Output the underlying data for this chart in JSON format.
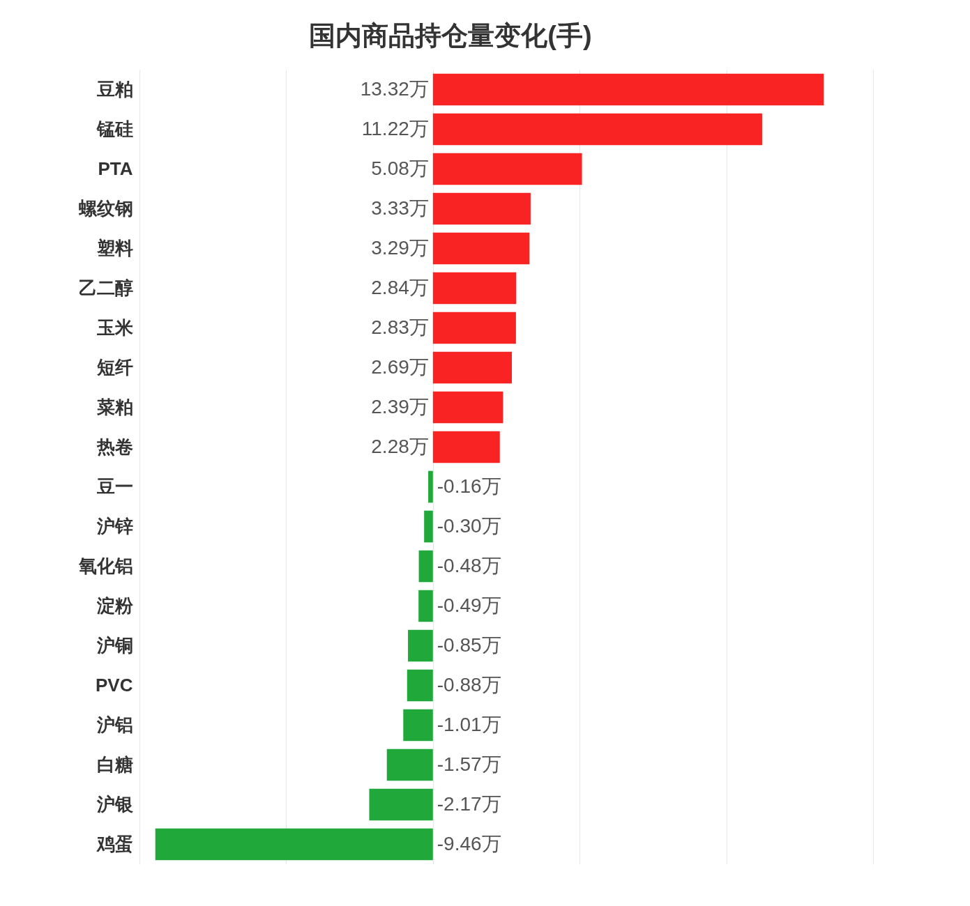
{
  "chart_data": {
    "type": "bar",
    "orientation": "horizontal",
    "title": "国内商品持仓量变化(手)",
    "categories": [
      "豆粕",
      "锰硅",
      "PTA",
      "螺纹钢",
      "塑料",
      "乙二醇",
      "玉米",
      "短纤",
      "菜粕",
      "热卷",
      "豆一",
      "沪锌",
      "氧化铝",
      "淀粉",
      "沪铜",
      "PVC",
      "沪铝",
      "白糖",
      "沪银",
      "鸡蛋"
    ],
    "values": [
      13.32,
      11.22,
      5.08,
      3.33,
      3.29,
      2.84,
      2.83,
      2.69,
      2.39,
      2.28,
      -0.16,
      -0.3,
      -0.48,
      -0.49,
      -0.85,
      -0.88,
      -1.01,
      -1.57,
      -2.17,
      -9.46
    ],
    "value_labels": [
      "13.32万",
      "11.22万",
      "5.08万",
      "3.33万",
      "3.29万",
      "2.84万",
      "2.83万",
      "2.69万",
      "2.39万",
      "2.28万",
      "-0.16万",
      "-0.30万",
      "-0.48万",
      "-0.49万",
      "-0.85万",
      "-0.88万",
      "-1.01万",
      "-1.57万",
      "-2.17万",
      "-9.46万"
    ],
    "colors": [
      "#f92324",
      "#f92324",
      "#f92324",
      "#f92324",
      "#f92324",
      "#f92324",
      "#f92324",
      "#f92324",
      "#f92324",
      "#f92324",
      "#20a83b",
      "#20a83b",
      "#20a83b",
      "#20a83b",
      "#20a83b",
      "#20a83b",
      "#20a83b",
      "#20a83b",
      "#20a83b",
      "#20a83b"
    ],
    "xlim": [
      -10,
      15
    ],
    "xticks": [
      {
        "value": -10,
        "label": null
      },
      {
        "value": -5,
        "label": null
      },
      {
        "value": 0,
        "label": null
      },
      {
        "value": 5,
        "label": null
      },
      {
        "value": 10,
        "label": null
      },
      {
        "value": 15,
        "label": null
      }
    ],
    "grid": "x",
    "tick_labels": "y"
  }
}
